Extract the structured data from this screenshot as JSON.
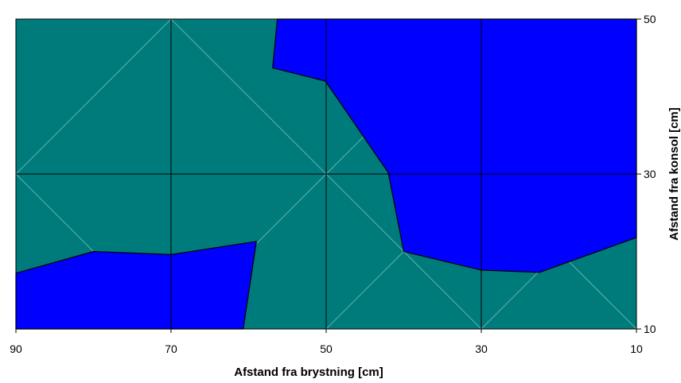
{
  "chart_data": {
    "type": "contour",
    "title": "",
    "xlabel": "Afstand fra brystning [cm]",
    "ylabel": "Afstand fra konsol [cm]",
    "xlim": [
      90,
      10
    ],
    "ylim": [
      10,
      50
    ],
    "x_ticks": [
      "90",
      "70",
      "50",
      "30",
      "10"
    ],
    "y_ticks": [
      "50",
      "30",
      "10"
    ],
    "grid": true,
    "colors": {
      "background_region": "#007b7b",
      "highlight_region": "#0000ff",
      "grid": "#000000",
      "diagonals": "#5fb0b0"
    },
    "regions": [
      {
        "fill": "highlight",
        "points": [
          [
            56.3,
            50
          ],
          [
            56.9,
            43.7
          ],
          [
            50.1,
            42.0
          ],
          [
            42.0,
            30.2
          ],
          [
            40.0,
            20.0
          ],
          [
            30.0,
            17.6
          ],
          [
            22.5,
            17.3
          ],
          [
            10.0,
            21.8
          ],
          [
            10.0,
            50
          ]
        ]
      },
      {
        "fill": "highlight",
        "points": [
          [
            90.0,
            17.2
          ],
          [
            80.0,
            20.0
          ],
          [
            70.0,
            19.6
          ],
          [
            59.0,
            21.3
          ],
          [
            60.7,
            10.0
          ],
          [
            90.0,
            10.0
          ]
        ]
      }
    ]
  }
}
